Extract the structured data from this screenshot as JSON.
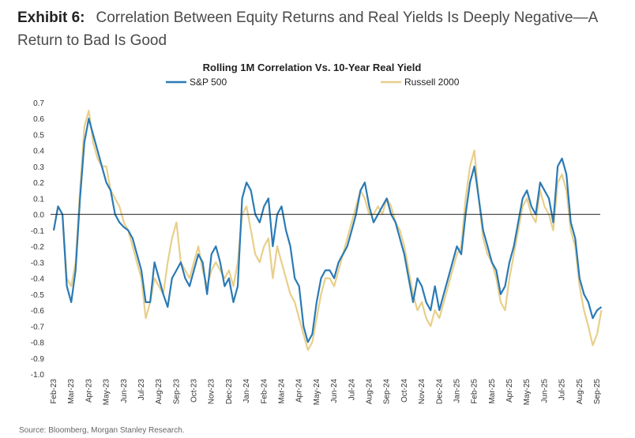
{
  "exhibit": {
    "label": "Exhibit 6:",
    "title": "Correlation Between Equity Returns and Real Yields Is Deeply Negative—A Return to Bad Is Good"
  },
  "source": "Source: Bloomberg, Morgan Stanley Research.",
  "chart_data": {
    "type": "line",
    "title": "Rolling 1M Correlation Vs. 10-Year Real Yield",
    "xlabel": "",
    "ylabel": "",
    "ylim": [
      -1.0,
      0.7
    ],
    "yticks": [
      "0.7",
      "0.6",
      "0.5",
      "0.4",
      "0.3",
      "0.2",
      "0.1",
      "0.0",
      "-0.1",
      "-0.2",
      "-0.3",
      "-0.4",
      "-0.5",
      "-0.6",
      "-0.7",
      "-0.8",
      "-0.9",
      "-1.0"
    ],
    "xticks": [
      "Feb-23",
      "Mar-23",
      "Apr-23",
      "May-23",
      "Jun-23",
      "Jul-23",
      "Aug-23",
      "Sep-23",
      "Oct-23",
      "Nov-23",
      "Dec-23",
      "Jan-24",
      "Feb-24",
      "Mar-24",
      "Apr-24",
      "May-24",
      "Jun-24",
      "Jul-24",
      "Aug-24",
      "Sep-24",
      "Oct-24",
      "Nov-24",
      "Dec-24",
      "Jan-25",
      "Feb-25",
      "Mar-25",
      "Apr-25",
      "May-25",
      "Jun-25",
      "Jul-25",
      "Aug-25",
      "Sep-25"
    ],
    "x_months_from_start": [
      0.0,
      0.25,
      0.5,
      0.75,
      1.0,
      1.25,
      1.5,
      1.75,
      2.0,
      2.25,
      2.5,
      2.75,
      3.0,
      3.25,
      3.5,
      3.75,
      4.0,
      4.25,
      4.5,
      4.75,
      5.0,
      5.25,
      5.5,
      5.75,
      6.0,
      6.25,
      6.5,
      6.75,
      7.0,
      7.25,
      7.5,
      7.75,
      8.0,
      8.25,
      8.5,
      8.75,
      9.0,
      9.25,
      9.5,
      9.75,
      10.0,
      10.25,
      10.5,
      10.75,
      11.0,
      11.25,
      11.5,
      11.75,
      12.0,
      12.25,
      12.5,
      12.75,
      13.0,
      13.25,
      13.5,
      13.75,
      14.0,
      14.25,
      14.5,
      14.75,
      15.0,
      15.25,
      15.5,
      15.75,
      16.0,
      16.25,
      16.5,
      16.75,
      17.0,
      17.25,
      17.5,
      17.75,
      18.0,
      18.25,
      18.5,
      18.75,
      19.0,
      19.25,
      19.5,
      19.75,
      20.0,
      20.25,
      20.5,
      20.75,
      21.0,
      21.25,
      21.5,
      21.75,
      22.0,
      22.25,
      22.5,
      22.75,
      23.0,
      23.25,
      23.5,
      23.75,
      24.0,
      24.25,
      24.5,
      24.75,
      25.0,
      25.25,
      25.5,
      25.75,
      26.0,
      26.25,
      26.5,
      26.75,
      27.0,
      27.25,
      27.5,
      27.75,
      28.0,
      28.25,
      28.5,
      28.75,
      29.0,
      29.25,
      29.5,
      29.75,
      30.0,
      30.25,
      30.5,
      30.75,
      31.0,
      31.25,
      31.5,
      31.75
    ],
    "series": [
      {
        "name": "S&P 500",
        "color": "#2a7ab5",
        "values": [
          -0.1,
          0.05,
          0.0,
          -0.45,
          -0.55,
          -0.35,
          0.1,
          0.45,
          0.6,
          0.5,
          0.4,
          0.3,
          0.2,
          0.15,
          0.0,
          -0.05,
          -0.08,
          -0.1,
          -0.15,
          -0.25,
          -0.35,
          -0.55,
          -0.55,
          -0.3,
          -0.4,
          -0.5,
          -0.58,
          -0.4,
          -0.35,
          -0.3,
          -0.4,
          -0.45,
          -0.35,
          -0.25,
          -0.3,
          -0.5,
          -0.25,
          -0.2,
          -0.3,
          -0.45,
          -0.4,
          -0.55,
          -0.45,
          0.1,
          0.2,
          0.15,
          0.0,
          -0.05,
          0.05,
          0.1,
          -0.2,
          0.0,
          0.05,
          -0.1,
          -0.2,
          -0.4,
          -0.45,
          -0.7,
          -0.8,
          -0.75,
          -0.55,
          -0.4,
          -0.35,
          -0.35,
          -0.4,
          -0.3,
          -0.25,
          -0.2,
          -0.1,
          0.0,
          0.15,
          0.2,
          0.05,
          -0.05,
          0.0,
          0.05,
          0.1,
          0.0,
          -0.05,
          -0.15,
          -0.25,
          -0.4,
          -0.55,
          -0.4,
          -0.45,
          -0.55,
          -0.6,
          -0.45,
          -0.6,
          -0.5,
          -0.4,
          -0.3,
          -0.2,
          -0.25,
          0.0,
          0.2,
          0.3,
          0.1,
          -0.1,
          -0.2,
          -0.3,
          -0.35,
          -0.5,
          -0.45,
          -0.3,
          -0.2,
          -0.05,
          0.1,
          0.15,
          0.05,
          0.0,
          0.2,
          0.15,
          0.1,
          -0.05,
          0.3,
          0.35,
          0.25,
          -0.05,
          -0.15,
          -0.4,
          -0.5,
          -0.55,
          -0.65,
          -0.6,
          -0.58
        ]
      },
      {
        "name": "Russell 2000",
        "color": "#e8cf8a",
        "values": [
          -0.1,
          0.05,
          0.0,
          -0.4,
          -0.45,
          -0.3,
          0.15,
          0.55,
          0.65,
          0.45,
          0.35,
          0.3,
          0.3,
          0.15,
          0.1,
          0.05,
          -0.05,
          -0.1,
          -0.2,
          -0.3,
          -0.4,
          -0.65,
          -0.55,
          -0.4,
          -0.45,
          -0.5,
          -0.3,
          -0.15,
          -0.05,
          -0.3,
          -0.35,
          -0.4,
          -0.3,
          -0.2,
          -0.35,
          -0.45,
          -0.35,
          -0.3,
          -0.35,
          -0.4,
          -0.35,
          -0.45,
          -0.3,
          0.0,
          0.05,
          -0.1,
          -0.25,
          -0.3,
          -0.2,
          -0.15,
          -0.4,
          -0.2,
          -0.3,
          -0.4,
          -0.5,
          -0.55,
          -0.65,
          -0.75,
          -0.85,
          -0.8,
          -0.65,
          -0.5,
          -0.4,
          -0.4,
          -0.45,
          -0.35,
          -0.25,
          -0.15,
          -0.05,
          0.05,
          0.15,
          0.1,
          0.0,
          0.0,
          0.05,
          0.0,
          0.1,
          0.05,
          -0.05,
          -0.1,
          -0.2,
          -0.35,
          -0.5,
          -0.6,
          -0.55,
          -0.65,
          -0.7,
          -0.6,
          -0.65,
          -0.55,
          -0.45,
          -0.35,
          -0.25,
          -0.2,
          0.1,
          0.3,
          0.4,
          0.1,
          -0.15,
          -0.25,
          -0.3,
          -0.4,
          -0.55,
          -0.6,
          -0.4,
          -0.25,
          -0.1,
          0.05,
          0.1,
          0.0,
          -0.05,
          0.15,
          0.05,
          0.0,
          -0.1,
          0.2,
          0.25,
          0.15,
          -0.1,
          -0.2,
          -0.45,
          -0.6,
          -0.7,
          -0.82,
          -0.75,
          -0.6
        ]
      }
    ],
    "legend": "top",
    "grid": false
  }
}
